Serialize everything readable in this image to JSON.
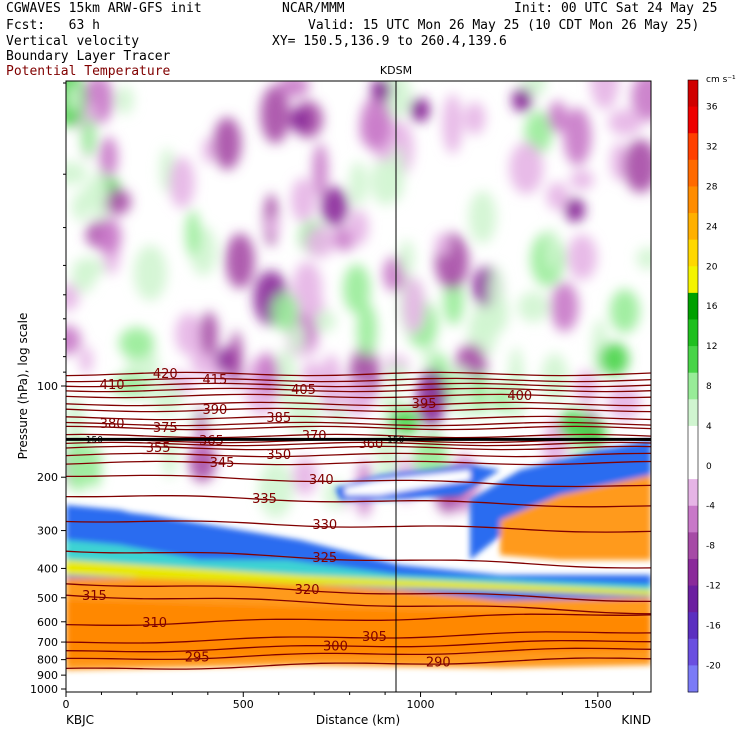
{
  "header": {
    "line1_left": "CGWAVES 15km ARW-GFS init",
    "line1_center": "NCAR/MMM",
    "line1_right": "Init: 00 UTC Sat 24 May 25",
    "line2_left": "Fcst:   63 h",
    "line2_right": "Valid: 15 UTC Mon 26 May 25 (10 CDT Mon 26 May 25)",
    "line3_left": "Vertical velocity",
    "line3_right": "XY= 150.5,136.9 to 260.4,139.6",
    "line4_left": "Boundary Layer Tracer",
    "line5_left": "Potential Temperature",
    "line5_color": "#800000"
  },
  "chart_data": {
    "type": "heatmap",
    "xlabel": "Distance (km)",
    "ylabel": "Pressure (hPa), log scale",
    "xlim": [
      0,
      1650
    ],
    "ylim": [
      1000,
      10
    ],
    "y_scale": "log",
    "x_ticks": [
      0,
      500,
      1000,
      1500
    ],
    "y_ticks": [
      100,
      200,
      300,
      400,
      500,
      600,
      700,
      800,
      900,
      1000
    ],
    "endpoint_labels": {
      "left": "KBJC",
      "right": "KIND"
    },
    "vertical_marker": {
      "label": "KDSM",
      "x": 940
    },
    "fill_variable": "Vertical velocity",
    "colorbar": {
      "units": "cm s⁻¹",
      "levels": [
        -20,
        -16,
        -12,
        -8,
        -4,
        0,
        4,
        8,
        12,
        16,
        20,
        24,
        28,
        32,
        36
      ],
      "colors": [
        "#7b7bf7",
        "#6a4fe0",
        "#5b2fc0",
        "#6b1fa0",
        "#8a2a9a",
        "#a64aa6",
        "#c878c8",
        "#e6b4e6",
        "#ffffff",
        "#ffffff",
        "#d0f5d0",
        "#98ec98",
        "#48d448",
        "#1fbf1f",
        "#00a000",
        "#f4f400",
        "#ffd800",
        "#ffb000",
        "#ff8c00",
        "#ff6a00",
        "#ff4000",
        "#ee0000",
        "#d00000"
      ]
    },
    "theta_contours": [
      {
        "value": 290,
        "label_x": 1050
      },
      {
        "value": 295,
        "label_x": 370
      },
      {
        "value": 300,
        "label_x": 760
      },
      {
        "value": 305,
        "label_x": 870
      },
      {
        "value": 310,
        "label_x": 250
      },
      {
        "value": 315,
        "label_x": 80
      },
      {
        "value": 320,
        "label_x": 680
      },
      {
        "value": 325,
        "label_x": 730
      },
      {
        "value": 330,
        "label_x": 730
      },
      {
        "value": 335,
        "label_x": 560
      },
      {
        "value": 340,
        "label_x": 720
      },
      {
        "value": 345,
        "label_x": 440
      },
      {
        "value": 350,
        "label_x": 600
      },
      {
        "value": 355,
        "label_x": 260
      },
      {
        "value": 360,
        "label_x": 860
      },
      {
        "value": 365,
        "label_x": 410
      },
      {
        "value": 370,
        "label_x": 700
      },
      {
        "value": 375,
        "label_x": 280
      },
      {
        "value": 380,
        "label_x": 130
      },
      {
        "value": 385,
        "label_x": 600
      },
      {
        "value": 390,
        "label_x": 420
      },
      {
        "value": 395,
        "label_x": 1010
      },
      {
        "value": 400,
        "label_x": 1280
      },
      {
        "value": 405,
        "label_x": 670
      },
      {
        "value": 410,
        "label_x": 130
      },
      {
        "value": 415,
        "label_x": 420
      },
      {
        "value": 420,
        "label_x": 280
      }
    ],
    "tropopause_label": "150"
  }
}
